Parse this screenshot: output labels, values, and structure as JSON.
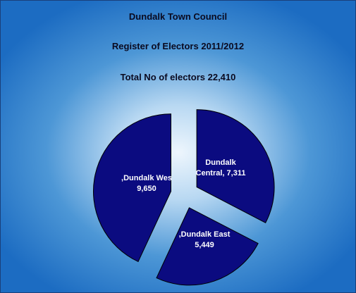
{
  "chart_data": {
    "type": "pie",
    "title": [
      "Dundalk Town Council",
      "Register of Electors 2011/2012",
      "Total No of electors  22,410"
    ],
    "slices": [
      {
        "label_lines": [
          "Dundalk",
          "Central, 7,311"
        ],
        "value": 7311
      },
      {
        "label_lines": [
          ",Dundalk East",
          "5,449"
        ],
        "value": 5449
      },
      {
        "label_lines": [
          ",Dundalk Wes",
          "9,650"
        ],
        "value": 9650
      }
    ],
    "exploded": true,
    "legend": "none",
    "colors": {
      "slice": "#0b0b80",
      "slice_stroke": "#000000",
      "label": "#ffffff",
      "background_outer": "#1c6cc2",
      "background_center": "#eef6fd"
    }
  }
}
